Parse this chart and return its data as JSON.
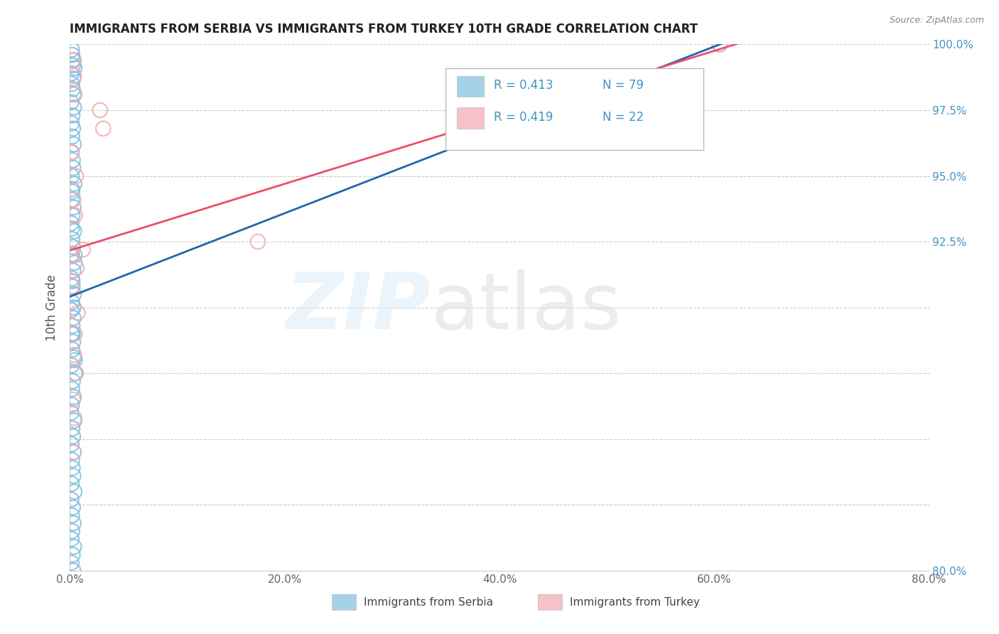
{
  "title": "IMMIGRANTS FROM SERBIA VS IMMIGRANTS FROM TURKEY 10TH GRADE CORRELATION CHART",
  "source_text": "Source: ZipAtlas.com",
  "ylabel": "10th Grade",
  "xlim": [
    0.0,
    80.0
  ],
  "ylim": [
    80.0,
    100.0
  ],
  "xticks": [
    0.0,
    20.0,
    40.0,
    60.0,
    80.0
  ],
  "yticks": [
    80.0,
    82.5,
    85.0,
    87.5,
    90.0,
    92.5,
    95.0,
    97.5,
    100.0
  ],
  "xtick_labels": [
    "0.0%",
    "20.0%",
    "40.0%",
    "60.0%",
    "80.0%"
  ],
  "ytick_labels_right": [
    "80.0%",
    "",
    "",
    "",
    "",
    "92.5%",
    "95.0%",
    "97.5%",
    "100.0%"
  ],
  "serbia_color": "#7fbfdf",
  "turkey_color": "#f4a8b0",
  "serbia_line_color": "#2166ac",
  "turkey_line_color": "#e8506a",
  "legend_color": "#4393c3",
  "serbia_R": "0.413",
  "serbia_N": "79",
  "turkey_R": "0.419",
  "turkey_N": "22",
  "serbia_x": [
    0.18,
    0.22,
    0.35,
    0.28,
    0.15,
    0.42,
    0.31,
    0.19,
    0.26,
    0.33,
    0.12,
    0.38,
    0.24,
    0.17,
    0.29,
    0.21,
    0.36,
    0.14,
    0.27,
    0.32,
    0.16,
    0.41,
    0.23,
    0.18,
    0.34,
    0.25,
    0.13,
    0.39,
    0.22,
    0.28,
    0.15,
    0.43,
    0.31,
    0.19,
    0.26,
    0.37,
    0.2,
    0.14,
    0.33,
    0.24,
    0.17,
    0.3,
    0.22,
    0.38,
    0.16,
    0.45,
    0.27,
    0.21,
    0.35,
    0.18,
    0.12,
    0.4,
    0.23,
    0.29,
    0.15,
    0.36,
    0.2,
    0.25,
    0.32,
    0.17,
    0.42,
    0.13,
    0.28,
    0.19,
    0.34,
    0.22,
    0.16,
    0.38,
    0.26,
    0.14,
    0.31,
    0.2,
    0.18,
    0.44,
    0.24,
    0.35,
    0.27,
    0.46,
    60.5
  ],
  "serbia_y": [
    99.8,
    99.6,
    99.4,
    99.2,
    98.9,
    99.1,
    98.7,
    98.5,
    98.3,
    98.1,
    97.8,
    97.6,
    97.3,
    97.0,
    96.8,
    96.5,
    96.2,
    95.9,
    95.6,
    95.3,
    95.0,
    94.7,
    94.4,
    94.1,
    93.8,
    93.5,
    93.2,
    92.9,
    92.6,
    92.3,
    92.0,
    91.7,
    91.4,
    91.1,
    90.8,
    90.5,
    90.2,
    89.9,
    89.6,
    89.3,
    89.0,
    88.7,
    88.4,
    88.1,
    87.8,
    87.5,
    87.2,
    86.9,
    86.6,
    86.3,
    86.0,
    85.7,
    85.4,
    85.1,
    84.8,
    84.5,
    84.2,
    83.9,
    83.6,
    83.3,
    83.0,
    82.7,
    82.4,
    82.1,
    81.8,
    81.5,
    81.2,
    80.9,
    80.6,
    80.3,
    80.0,
    94.5,
    93.0,
    92.0,
    91.0,
    90.0,
    89.0,
    88.0,
    100.0
  ],
  "turkey_x": [
    0.25,
    0.38,
    0.42,
    2.8,
    3.1,
    0.18,
    0.55,
    0.33,
    0.48,
    0.22,
    0.61,
    0.19,
    0.72,
    0.44,
    0.37,
    0.56,
    1.2,
    0.29,
    17.5,
    0.41,
    0.35,
    60.5
  ],
  "turkey_y": [
    99.4,
    98.8,
    98.1,
    97.5,
    96.8,
    95.9,
    95.0,
    94.1,
    93.5,
    92.0,
    91.5,
    90.8,
    89.8,
    89.0,
    88.2,
    87.5,
    92.2,
    86.5,
    92.5,
    85.8,
    84.5,
    100.0
  ]
}
